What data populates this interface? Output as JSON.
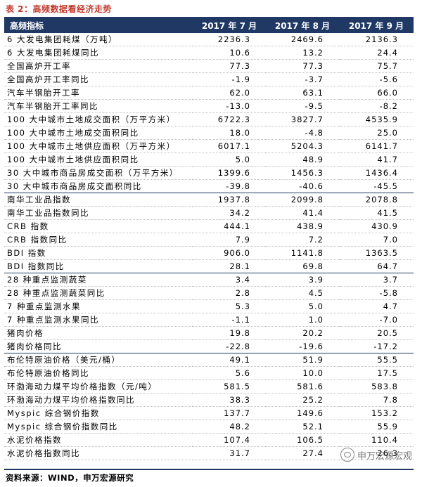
{
  "caption": "表 2：高频数据看经济走势",
  "header": [
    "高频指标",
    "2017 年 7 月",
    "2017 年 8 月",
    "2017 年 9 月"
  ],
  "rows": [
    {
      "name": "6 大发电集团耗煤（万吨）",
      "v": [
        "2236.3",
        "2469.6",
        "2136.3"
      ]
    },
    {
      "name": "6 大发电集团耗煤同比",
      "v": [
        "10.6",
        "13.2",
        "24.4"
      ]
    },
    {
      "name": "全国高炉开工率",
      "v": [
        "77.3",
        "77.3",
        "75.7"
      ]
    },
    {
      "name": "全国高炉开工率同比",
      "v": [
        "-1.9",
        "-3.7",
        "-5.6"
      ]
    },
    {
      "name": "汽车半钢胎开工率",
      "v": [
        "62.0",
        "63.1",
        "66.0"
      ]
    },
    {
      "name": "汽车半钢胎开工率同比",
      "v": [
        "-13.0",
        "-9.5",
        "-8.2"
      ]
    },
    {
      "name": "100 大中城市土地成交面积（万平方米）",
      "v": [
        "6722.3",
        "3827.7",
        "4535.9"
      ]
    },
    {
      "name": "100 大中城市土地成交面积同比",
      "v": [
        "18.0",
        "-4.8",
        "25.0"
      ]
    },
    {
      "name": "100 大中城市土地供应面积（万平方米）",
      "v": [
        "6017.1",
        "5204.3",
        "6141.7"
      ]
    },
    {
      "name": "100 大中城市土地供应面积同比",
      "v": [
        "5.0",
        "48.9",
        "41.7"
      ]
    },
    {
      "name": "30 大中城市商品房成交面积（万平方米）",
      "v": [
        "1399.6",
        "1456.3",
        "1436.4"
      ]
    },
    {
      "name": "30 大中城市商品房成交面积同比",
      "v": [
        "-39.8",
        "-40.6",
        "-45.5"
      ]
    },
    {
      "name": "南华工业品指数",
      "v": [
        "1937.8",
        "2099.8",
        "2078.8"
      ],
      "grp": true
    },
    {
      "name": "南华工业品指数同比",
      "v": [
        "34.2",
        "41.4",
        "41.5"
      ]
    },
    {
      "name": "CRB 指数",
      "v": [
        "444.1",
        "438.9",
        "430.9"
      ]
    },
    {
      "name": "CRB 指数同比",
      "v": [
        "7.9",
        "7.2",
        "7.0"
      ]
    },
    {
      "name": "BDI 指数",
      "v": [
        "906.0",
        "1141.8",
        "1363.5"
      ]
    },
    {
      "name": "BDI 指数同比",
      "v": [
        "28.1",
        "69.8",
        "64.7"
      ]
    },
    {
      "name": "28 种重点监测蔬菜",
      "v": [
        "3.4",
        "3.9",
        "3.7"
      ],
      "grp": true
    },
    {
      "name": "28 种重点监测蔬菜同比",
      "v": [
        "2.8",
        "4.5",
        "-5.8"
      ]
    },
    {
      "name": "7 种重点监测水果",
      "v": [
        "5.3",
        "5.0",
        "4.7"
      ]
    },
    {
      "name": "7 种重点监测水果同比",
      "v": [
        "-1.1",
        "1.0",
        "-7.0"
      ]
    },
    {
      "name": "猪肉价格",
      "v": [
        "19.8",
        "20.2",
        "20.5"
      ]
    },
    {
      "name": "猪肉价格同比",
      "v": [
        "-22.8",
        "-19.6",
        "-17.2"
      ]
    },
    {
      "name": "布伦特原油价格（美元/桶）",
      "v": [
        "49.1",
        "51.9",
        "55.5"
      ],
      "grp": true
    },
    {
      "name": "布伦特原油价格同比",
      "v": [
        "5.6",
        "10.0",
        "17.5"
      ]
    },
    {
      "name": "环渤海动力煤平均价格指数（元/吨）",
      "v": [
        "581.5",
        "581.6",
        "583.8"
      ]
    },
    {
      "name": "环渤海动力煤平均价格指数同比",
      "v": [
        "38.3",
        "25.2",
        "7.8"
      ]
    },
    {
      "name": "Myspic 综合钢价指数",
      "v": [
        "137.7",
        "149.6",
        "153.2"
      ]
    },
    {
      "name": "Myspic 综合钢价指数同比",
      "v": [
        "48.2",
        "52.1",
        "55.9"
      ]
    },
    {
      "name": "水泥价格指数",
      "v": [
        "107.4",
        "106.5",
        "110.4"
      ]
    },
    {
      "name": "水泥价格指数同比",
      "v": [
        "31.7",
        "27.4",
        "26.3"
      ]
    }
  ],
  "source": "资料来源：WIND，申万宏源研究",
  "watermark": "申万宏源宏观",
  "colors": {
    "header_bg": "#1f3864",
    "caption": "#c0392b"
  }
}
